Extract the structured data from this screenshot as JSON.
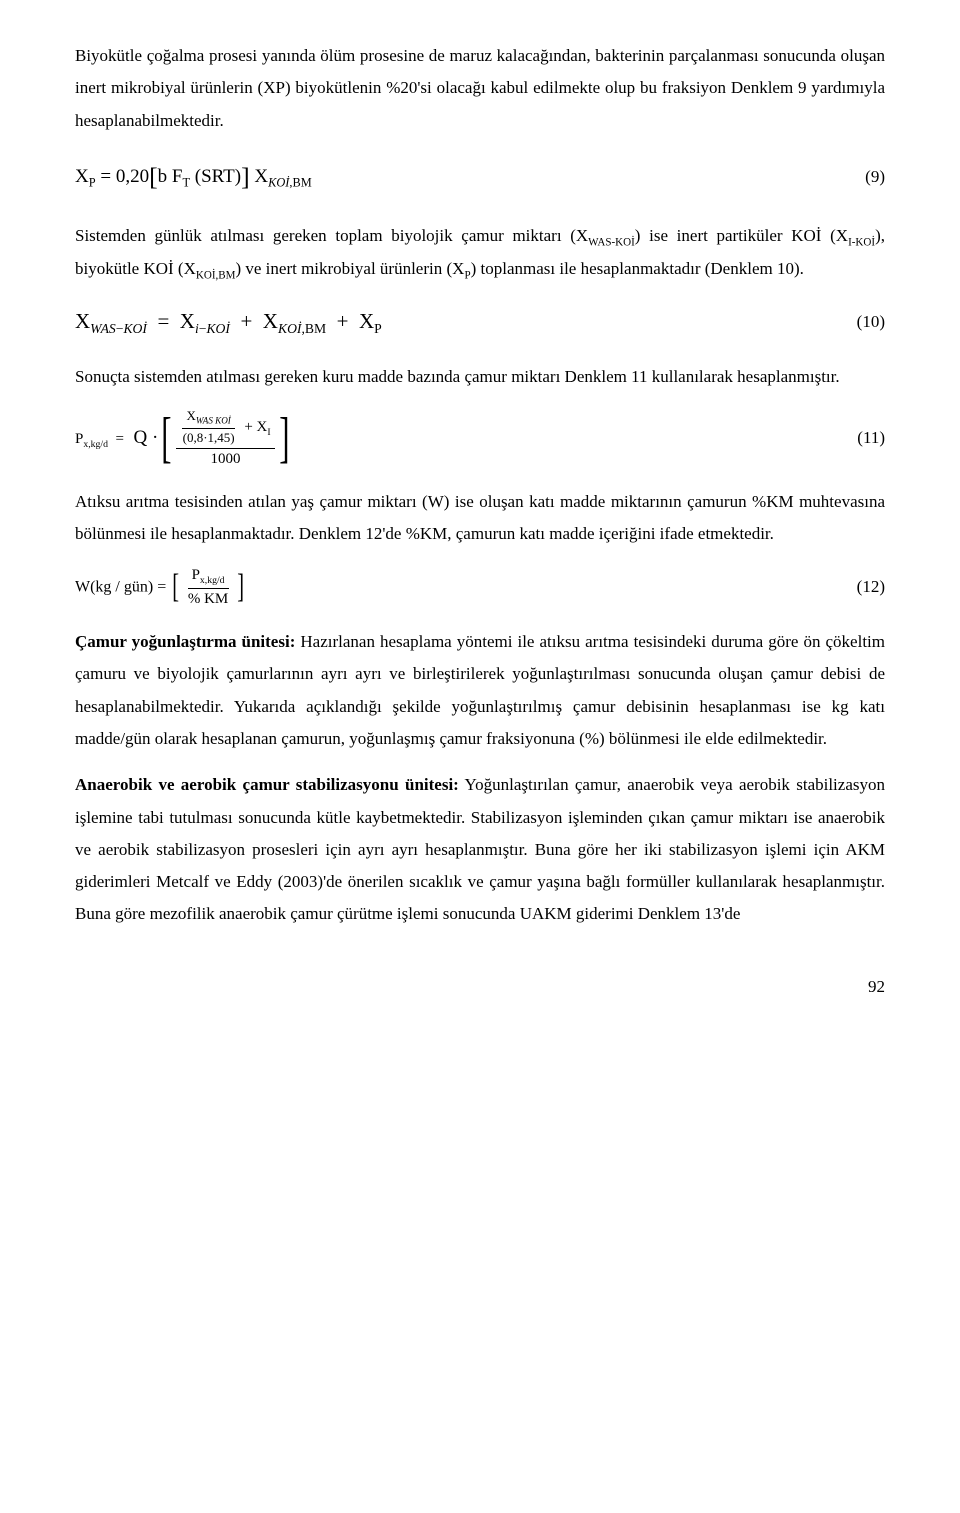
{
  "para1": "Biyokütle çoğalma prosesi yanında ölüm prosesine de maruz kalacağından, bakterinin parçalanması sonucunda oluşan inert mikrobiyal ürünlerin (XP) biyokütlenin %20'si olacağı kabul edilmekte olup bu fraksiyon Denklem 9 yardımıyla hesaplanabilmektedir.",
  "eq9": {
    "num": "(9)"
  },
  "para2_a": "Sistemden günlük atılması gereken toplam biyolojik çamur miktarı (X",
  "para2_b": ") ise inert partiküler KOİ (X",
  "para2_c": "), biyokütle KOİ (X",
  "para2_d": ") ve inert mikrobiyal ürünlerin (X",
  "para2_e": ") toplanması ile hesaplanmaktadır (Denklem 10).",
  "sub_waskoi": "WAS-KOİ",
  "sub_ikoi": "I-KOİ",
  "sub_koibm": "KOİ,BM",
  "sub_p": "P",
  "eq10": {
    "num": "(10)"
  },
  "para3": "Sonuçta sistemden atılması gereken kuru madde bazında çamur miktarı Denklem 11 kullanılarak hesaplanmıştır.",
  "eq11": {
    "num": "(11)",
    "coeff": "(0,8·1,45)",
    "denom": "1000"
  },
  "para4": "Atıksu arıtma tesisinden atılan yaş çamur miktarı (W) ise oluşan katı madde miktarının çamurun %KM muhtevasına bölünmesi ile hesaplanmaktadır. Denklem 12'de %KM, çamurun katı madde içeriğini ifade etmektedir.",
  "eq12": {
    "num": "(12)",
    "lhs": "W(kg / gün) =",
    "den": "% KM"
  },
  "section_title": "Çamur yoğunlaştırma ünitesi:",
  "para5": " Hazırlanan hesaplama yöntemi ile atıksu arıtma tesisindeki duruma göre ön çökeltim çamuru ve biyolojik çamurlarının ayrı ayrı ve birleştirilerek yoğunlaştırılması sonucunda oluşan çamur debisi de hesaplanabilmektedir. Yukarıda açıklandığı şekilde yoğunlaştırılmış çamur debisinin hesaplanması ise kg katı madde/gün olarak hesaplanan çamurun, yoğunlaşmış çamur fraksiyonuna (%) bölünmesi ile elde edilmektedir.",
  "section_title2": "Anaerobik ve aerobik çamur stabilizasyonu ünitesi:",
  "para6": " Yoğunlaştırılan çamur, anaerobik veya aerobik stabilizasyon işlemine tabi tutulması sonucunda kütle kaybetmektedir. Stabilizasyon işleminden çıkan çamur miktarı ise anaerobik ve aerobik stabilizasyon prosesleri için ayrı ayrı hesaplanmıştır. Buna göre her iki stabilizasyon işlemi için AKM giderimleri Metcalf ve Eddy (2003)'de önerilen sıcaklık ve çamur yaşına bağlı formüller kullanılarak hesaplanmıştır. Buna göre mezofilik anaerobik çamur çürütme işlemi sonucunda UAKM giderimi Denklem 13'de",
  "pagenum": "92"
}
